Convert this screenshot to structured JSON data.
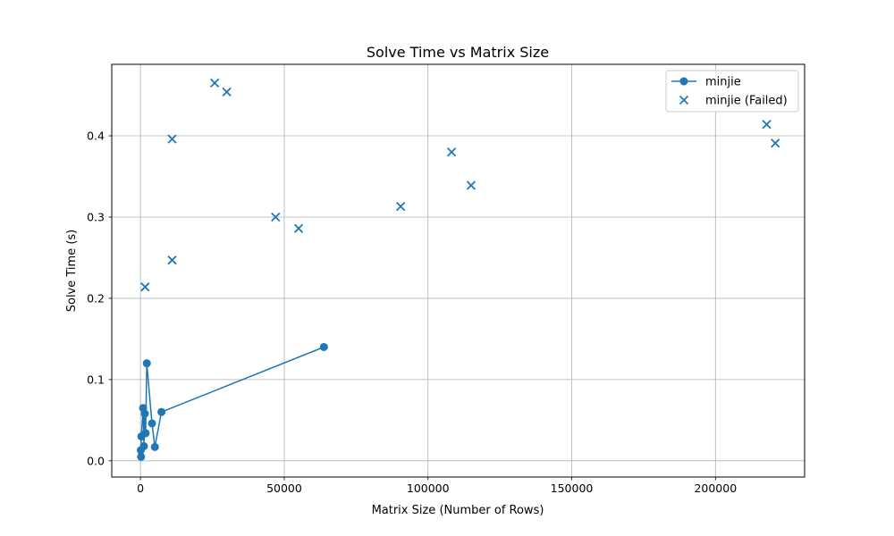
{
  "chart_data": {
    "type": "scatter",
    "title": "Solve Time vs Matrix Size",
    "xlabel": "Matrix Size (Number of Rows)",
    "ylabel": "Solve Time (s)",
    "xlim": [
      -10000,
      231000
    ],
    "ylim": [
      -0.02,
      0.488
    ],
    "xticks": [
      0,
      50000,
      100000,
      150000,
      200000
    ],
    "xtick_labels": [
      "0",
      "50000",
      "100000",
      "150000",
      "200000"
    ],
    "yticks": [
      0.0,
      0.1,
      0.2,
      0.3,
      0.4
    ],
    "ytick_labels": [
      "0.0",
      "0.1",
      "0.2",
      "0.3",
      "0.4"
    ],
    "grid": true,
    "legend_position": "top-right",
    "color": "#1f77b4",
    "series": [
      {
        "name": "minjie",
        "style": "line-marker",
        "marker": "circle",
        "x": [
          100,
          200,
          300,
          900,
          1200,
          1500,
          1800,
          2200,
          4000,
          5000,
          7300,
          63800
        ],
        "y": [
          0.013,
          0.005,
          0.03,
          0.065,
          0.018,
          0.058,
          0.034,
          0.12,
          0.046,
          0.017,
          0.06,
          0.14
        ]
      },
      {
        "name": "minjie (Failed)",
        "style": "scatter",
        "marker": "x",
        "x": [
          1600,
          11000,
          11000,
          25800,
          30000,
          47000,
          55000,
          90500,
          108200,
          115000,
          217800,
          220800
        ],
        "y": [
          0.214,
          0.247,
          0.396,
          0.465,
          0.454,
          0.3,
          0.286,
          0.313,
          0.38,
          0.339,
          0.414,
          0.391
        ]
      }
    ]
  }
}
